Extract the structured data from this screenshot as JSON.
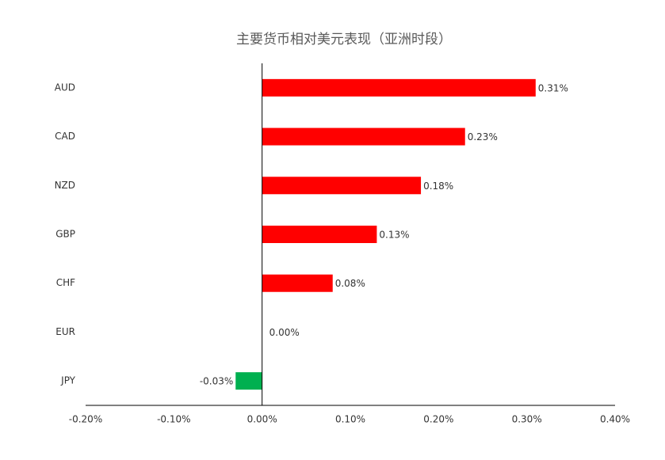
{
  "chart_data": {
    "type": "hbar",
    "title": "主要货币相对美元表现（亚洲时段）",
    "categories": [
      "AUD",
      "CAD",
      "NZD",
      "GBP",
      "CHF",
      "EUR",
      "JPY"
    ],
    "values": [
      0.31,
      0.23,
      0.18,
      0.13,
      0.08,
      0.0,
      -0.03
    ],
    "value_labels": [
      "0.31%",
      "0.23%",
      "0.18%",
      "0.13%",
      "0.08%",
      "0.00%",
      "-0.03%"
    ],
    "colors": [
      "#ff0000",
      "#ff0000",
      "#ff0000",
      "#ff0000",
      "#ff0000",
      "#ff0000",
      "#00b050"
    ],
    "xlim": [
      -0.2,
      0.4
    ],
    "xticks": [
      {
        "value": -0.2,
        "label": "-0.20%"
      },
      {
        "value": -0.1,
        "label": "-0.10%"
      },
      {
        "value": 0,
        "label": "0.00%"
      },
      {
        "value": 0.1,
        "label": "0.10%"
      },
      {
        "value": 0.2,
        "label": "0.20%"
      },
      {
        "value": 0.3,
        "label": "0.30%"
      },
      {
        "value": 0.4,
        "label": "0.40%"
      }
    ],
    "grid": false
  }
}
